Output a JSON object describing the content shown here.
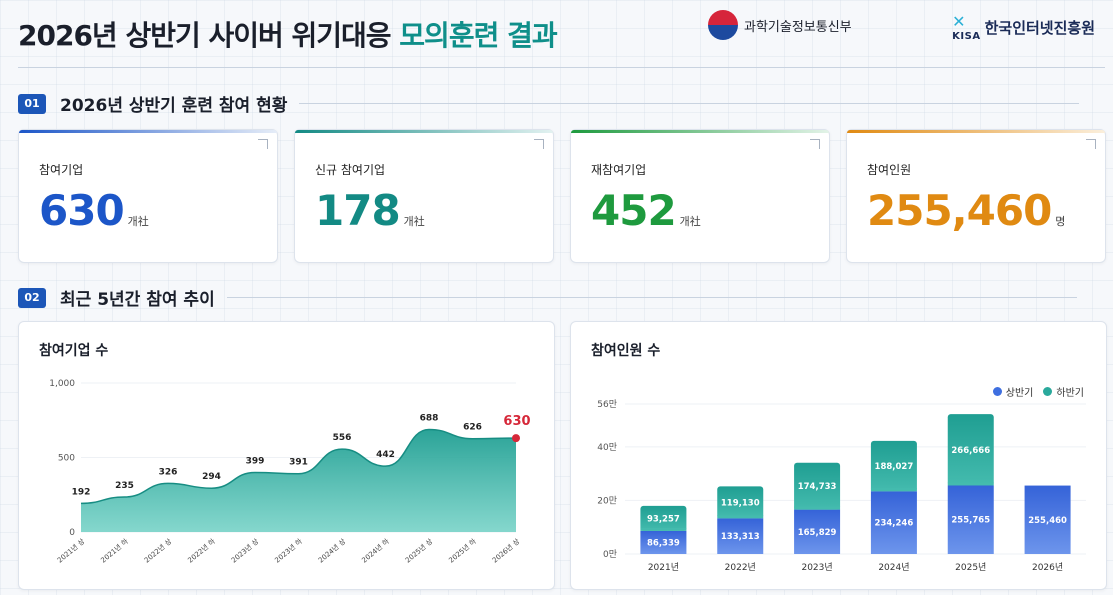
{
  "header": {
    "title_main": "2026년 상반기 사이버 위기대응",
    "title_accent": "모의훈련 결과",
    "logo_msit": "과학기술정보통신부",
    "logo_kisa_mark": "KISA",
    "logo_kisa": "한국인터넷진흥원"
  },
  "section1": {
    "num": "01",
    "label": "2026년 상반기 훈련 참여 현황"
  },
  "section2": {
    "num": "02",
    "label": "최근 5년간 참여 추이"
  },
  "stats": [
    {
      "label": "참여기업",
      "value": "630",
      "unit": "개社",
      "color": "#1c56c8"
    },
    {
      "label": "신규 참여기업",
      "value": "178",
      "unit": "개社",
      "color": "#138a84"
    },
    {
      "label": "재참여기업",
      "value": "452",
      "unit": "개社",
      "color": "#1e9a3e"
    },
    {
      "label": "참여인원",
      "value": "255,460",
      "unit": "명",
      "color": "#e08a12"
    }
  ],
  "chart_data": [
    {
      "type": "area",
      "title": "참여기업 수",
      "categories": [
        "2021년 상",
        "2021년 하",
        "2022년 상",
        "2022년 하",
        "2023년 상",
        "2023년 하",
        "2024년 상",
        "2024년 하",
        "2025년 상",
        "2025년 하",
        "2026년 상"
      ],
      "values": [
        192,
        235,
        326,
        294,
        399,
        391,
        556,
        442,
        688,
        626,
        630
      ],
      "value_labels": [
        "192",
        "235",
        "326",
        "294",
        "399",
        "391",
        "556",
        "442",
        "688",
        "626",
        "630"
      ],
      "yticks": [
        0,
        500,
        1000
      ],
      "ytick_labels": [
        "0",
        "500",
        "1,000"
      ],
      "ylim": [
        0,
        1000
      ],
      "highlight_last": true,
      "colors": {
        "fill": "#2aa99c",
        "highlight": "#d62839"
      }
    },
    {
      "type": "bar",
      "stacked": true,
      "title": "참여인원 수",
      "categories": [
        "2021년",
        "2022년",
        "2023년",
        "2024년",
        "2025년",
        "2026년"
      ],
      "series": [
        {
          "name": "상반기",
          "values": [
            86339,
            133313,
            165829,
            234246,
            255765,
            255460
          ],
          "labels": [
            "86,339",
            "133,313",
            "165,829",
            "234,246",
            "255,765",
            "255,460"
          ],
          "color": "#3e6fe0"
        },
        {
          "name": "하반기",
          "values": [
            93257,
            119130,
            174733,
            188027,
            266666,
            0
          ],
          "labels": [
            "93,257",
            "119,130",
            "174,733",
            "188,027",
            "266,666",
            ""
          ],
          "color": "#2aa99c"
        }
      ],
      "yticks": [
        0,
        200000,
        400000,
        560000
      ],
      "ytick_labels": [
        "0만",
        "20만",
        "40만",
        "56만"
      ],
      "ylim": [
        0,
        560000
      ],
      "legend": "top-right"
    }
  ]
}
